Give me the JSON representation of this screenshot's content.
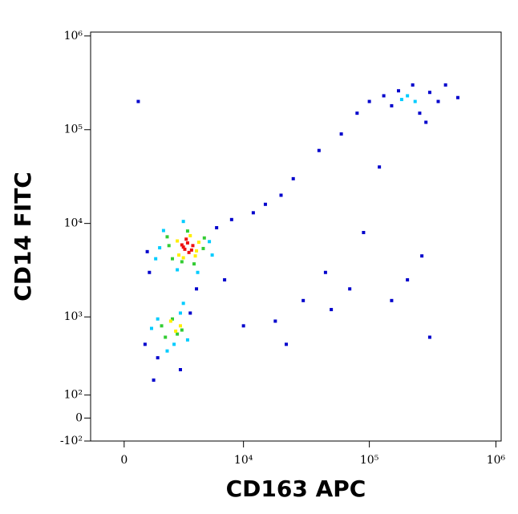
{
  "chart_data": {
    "type": "scatter",
    "x_label": "CD163 APC",
    "y_label": "CD14 FITC",
    "xscale": "biexponential",
    "yscale": "biexponential",
    "xlim": [
      -1500,
      1100000
    ],
    "ylim": [
      -100,
      1100000
    ],
    "xticks": [
      0,
      {
        "value": 10000,
        "label": "10⁴"
      },
      {
        "value": 100000,
        "label": "10⁵"
      },
      {
        "value": 1000000,
        "label": "10⁶"
      }
    ],
    "yticks": [
      {
        "value": -100,
        "label": "-10²"
      },
      0,
      {
        "value": 100,
        "label": "10²"
      },
      {
        "value": 1000,
        "label": "10³"
      },
      {
        "value": 10000,
        "label": "10⁴"
      },
      {
        "value": 100000,
        "label": "10⁵"
      },
      {
        "value": 1000000,
        "label": "10⁶"
      }
    ],
    "series": [
      {
        "color": "#0000cc",
        "x": [
          1000,
          6000,
          8000,
          12000,
          15000,
          20000,
          25000,
          40000,
          60000,
          80000,
          100000,
          130000,
          150000,
          250000,
          300000,
          350000,
          500000,
          170000,
          220000,
          280000,
          120000,
          90000,
          45000,
          30000,
          18000,
          1100,
          900,
          1500,
          2800,
          3500,
          4000,
          7000,
          70000,
          200000,
          260000,
          400000,
          10000,
          22000,
          50000,
          150000,
          300000,
          600,
          1300
        ],
        "values": [
          5000,
          9000,
          11000,
          13000,
          16000,
          20000,
          30000,
          60000,
          90000,
          150000,
          200000,
          230000,
          180000,
          150000,
          250000,
          200000,
          220000,
          260000,
          300000,
          120000,
          40000,
          8000,
          3000,
          1500,
          900,
          3000,
          500,
          350,
          250,
          1100,
          2000,
          2500,
          2000,
          2500,
          4500,
          300000,
          800,
          500,
          1200,
          1500,
          600,
          200000,
          180
        ]
      },
      {
        "color": "#00ccff",
        "x": [
          1600,
          5200,
          3000,
          2600,
          5500,
          4100,
          1800,
          1400,
          3000,
          1200,
          2800,
          2400,
          3300,
          1500,
          2000,
          180000,
          230000,
          200000
        ],
        "values": [
          5500,
          6400,
          10500,
          3200,
          4600,
          3000,
          8400,
          4200,
          1400,
          750,
          1100,
          500,
          560,
          950,
          420,
          210000,
          200000,
          230000
        ]
      },
      {
        "color": "#33cc33",
        "x": [
          2100,
          4600,
          3300,
          2300,
          4700,
          3800,
          2900,
          2000,
          1700,
          2300,
          2600,
          1900,
          2900
        ],
        "values": [
          5800,
          5400,
          8300,
          4200,
          7000,
          3700,
          3900,
          7200,
          800,
          950,
          650,
          600,
          720
        ]
      },
      {
        "color": "#ffee00",
        "x": [
          2600,
          4000,
          3500,
          2700,
          4200,
          3000,
          3900,
          2200,
          2500,
          2800
        ],
        "values": [
          6500,
          5100,
          7400,
          4600,
          6300,
          4300,
          4500,
          900,
          700,
          800
        ]
      },
      {
        "color": "#ee1111",
        "x": [
          3000,
          3300,
          3600,
          2900,
          3400,
          3200,
          3700,
          3100
        ],
        "values": [
          5600,
          6200,
          5200,
          5900,
          4900,
          6800,
          5800,
          5300
        ]
      }
    ]
  }
}
